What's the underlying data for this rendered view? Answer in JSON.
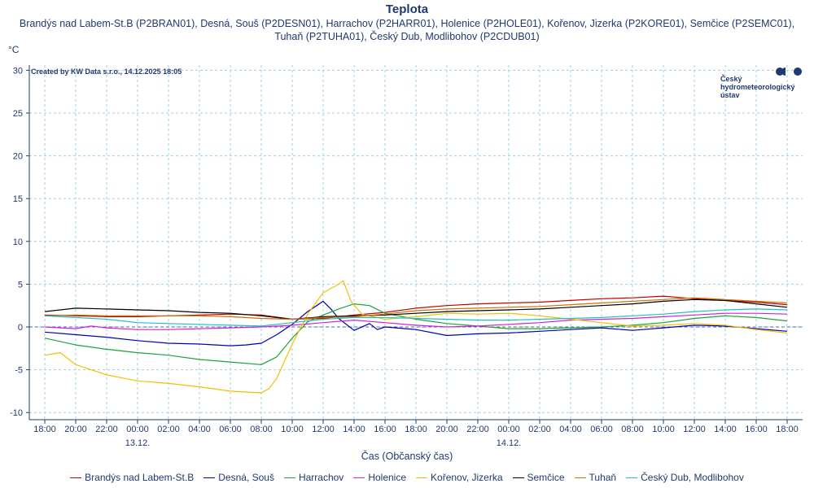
{
  "title": "Teplota",
  "subtitle": "Brandýs nad Labem-St.B (P2BRAN01), Desná, Souš (P2DESN01), Harrachov (P2HARR01), Holenice (P2HOLE01), Kořenov, Jizerka (P2KORE01), Semčice (P2SEMC01), Tuhaň (P2TUHA01), Český Dub, Modlibohov (P2CDUB01)",
  "credit": "Created by KW Data s.r.o., 14.12.2025 18:05",
  "logo": {
    "line1": "Český",
    "line2": "hydrometeorologický",
    "line3": "ústav"
  },
  "chart_data": {
    "type": "line",
    "ylabel": "°C",
    "xlabel": "Čas (Občanský čas)",
    "ylim": [
      -10,
      30
    ],
    "yticks": [
      30,
      25,
      20,
      15,
      10,
      5,
      0,
      -5,
      -10
    ],
    "xlim": [
      0,
      48
    ],
    "x_ticks": [
      {
        "x": 0,
        "label": "18:00"
      },
      {
        "x": 2,
        "label": "20:00"
      },
      {
        "x": 4,
        "label": "22:00"
      },
      {
        "x": 6,
        "label": "00:00",
        "date": "13.12."
      },
      {
        "x": 8,
        "label": "02:00"
      },
      {
        "x": 10,
        "label": "04:00"
      },
      {
        "x": 12,
        "label": "06:00"
      },
      {
        "x": 14,
        "label": "08:00"
      },
      {
        "x": 16,
        "label": "10:00"
      },
      {
        "x": 18,
        "label": "12:00"
      },
      {
        "x": 20,
        "label": "14:00"
      },
      {
        "x": 22,
        "label": "16:00"
      },
      {
        "x": 24,
        "label": "18:00"
      },
      {
        "x": 26,
        "label": "20:00"
      },
      {
        "x": 28,
        "label": "22:00"
      },
      {
        "x": 30,
        "label": "00:00",
        "date": "14.12."
      },
      {
        "x": 32,
        "label": "02:00"
      },
      {
        "x": 34,
        "label": "04:00"
      },
      {
        "x": 36,
        "label": "06:00"
      },
      {
        "x": 38,
        "label": "08:00"
      },
      {
        "x": 40,
        "label": "10:00"
      },
      {
        "x": 42,
        "label": "12:00"
      },
      {
        "x": 44,
        "label": "14:00"
      },
      {
        "x": 46,
        "label": "16:00"
      },
      {
        "x": 48,
        "label": "18:00"
      }
    ],
    "grid": true,
    "legend_position": "bottom",
    "series": [
      {
        "name": "Brandýs nad Labem-St.B",
        "color": "#c00000",
        "points": [
          [
            0,
            1.4
          ],
          [
            2,
            1.3
          ],
          [
            4,
            1.2
          ],
          [
            6,
            1.2
          ],
          [
            8,
            1.3
          ],
          [
            10,
            1.4
          ],
          [
            12,
            1.5
          ],
          [
            14,
            1.4
          ],
          [
            16,
            0.9
          ],
          [
            18,
            1.0
          ],
          [
            20,
            1.4
          ],
          [
            22,
            1.7
          ],
          [
            24,
            2.2
          ],
          [
            26,
            2.5
          ],
          [
            28,
            2.7
          ],
          [
            30,
            2.8
          ],
          [
            32,
            2.9
          ],
          [
            34,
            3.1
          ],
          [
            36,
            3.3
          ],
          [
            38,
            3.4
          ],
          [
            40,
            3.6
          ],
          [
            42,
            3.3
          ],
          [
            44,
            3.1
          ],
          [
            46,
            2.9
          ],
          [
            48,
            2.6
          ]
        ]
      },
      {
        "name": "Desná, Souš",
        "color": "#0000b0",
        "points": [
          [
            0,
            -0.6
          ],
          [
            2,
            -0.9
          ],
          [
            4,
            -1.2
          ],
          [
            6,
            -1.6
          ],
          [
            8,
            -1.9
          ],
          [
            10,
            -2.0
          ],
          [
            12,
            -2.2
          ],
          [
            13,
            -2.1
          ],
          [
            14,
            -1.9
          ],
          [
            15,
            -0.9
          ],
          [
            16,
            0.3
          ],
          [
            17,
            1.8
          ],
          [
            18,
            3.0
          ],
          [
            18.5,
            2.1
          ],
          [
            19,
            1.0
          ],
          [
            20,
            -0.4
          ],
          [
            21,
            0.4
          ],
          [
            21.5,
            -0.3
          ],
          [
            22,
            0.0
          ],
          [
            24,
            -0.3
          ],
          [
            26,
            -1.0
          ],
          [
            28,
            -0.8
          ],
          [
            30,
            -0.7
          ],
          [
            32,
            -0.5
          ],
          [
            34,
            -0.3
          ],
          [
            36,
            -0.1
          ],
          [
            38,
            -0.4
          ],
          [
            40,
            -0.1
          ],
          [
            42,
            0.2
          ],
          [
            44,
            0.1
          ],
          [
            46,
            -0.2
          ],
          [
            48,
            -0.5
          ]
        ]
      },
      {
        "name": "Harrachov",
        "color": "#1aa33a",
        "points": [
          [
            0,
            -1.3
          ],
          [
            2,
            -2.1
          ],
          [
            4,
            -2.6
          ],
          [
            6,
            -3.0
          ],
          [
            8,
            -3.3
          ],
          [
            10,
            -3.8
          ],
          [
            12,
            -4.1
          ],
          [
            14,
            -4.4
          ],
          [
            15,
            -3.5
          ],
          [
            16,
            -1.3
          ],
          [
            17,
            0.6
          ],
          [
            18,
            1.4
          ],
          [
            19,
            2.1
          ],
          [
            20,
            2.7
          ],
          [
            21,
            2.5
          ],
          [
            22,
            1.6
          ],
          [
            24,
            0.9
          ],
          [
            26,
            0.4
          ],
          [
            28,
            0.1
          ],
          [
            30,
            -0.2
          ],
          [
            32,
            -0.2
          ],
          [
            34,
            -0.1
          ],
          [
            36,
            0.0
          ],
          [
            38,
            0.2
          ],
          [
            40,
            0.5
          ],
          [
            42,
            1.0
          ],
          [
            44,
            1.3
          ],
          [
            46,
            1.1
          ],
          [
            48,
            0.7
          ]
        ]
      },
      {
        "name": "Holenice",
        "color": "#d61fd6",
        "points": [
          [
            0,
            0.0
          ],
          [
            2,
            -0.2
          ],
          [
            3,
            0.1
          ],
          [
            4,
            -0.1
          ],
          [
            6,
            -0.3
          ],
          [
            8,
            -0.3
          ],
          [
            10,
            -0.2
          ],
          [
            12,
            -0.1
          ],
          [
            14,
            0.0
          ],
          [
            16,
            0.2
          ],
          [
            18,
            0.5
          ],
          [
            20,
            0.8
          ],
          [
            22,
            0.5
          ],
          [
            24,
            0.2
          ],
          [
            26,
            0.0
          ],
          [
            28,
            0.1
          ],
          [
            30,
            0.3
          ],
          [
            32,
            0.5
          ],
          [
            34,
            0.8
          ],
          [
            36,
            0.9
          ],
          [
            38,
            1.0
          ],
          [
            40,
            1.2
          ],
          [
            42,
            1.4
          ],
          [
            44,
            1.6
          ],
          [
            46,
            1.6
          ],
          [
            48,
            1.5
          ]
        ]
      },
      {
        "name": "Kořenov, Jizerka",
        "color": "#f0c000",
        "points": [
          [
            0,
            -3.3
          ],
          [
            1,
            -3.0
          ],
          [
            2,
            -4.4
          ],
          [
            4,
            -5.6
          ],
          [
            6,
            -6.3
          ],
          [
            8,
            -6.6
          ],
          [
            10,
            -7.0
          ],
          [
            12,
            -7.5
          ],
          [
            13,
            -7.6
          ],
          [
            14,
            -7.7
          ],
          [
            14.5,
            -7.2
          ],
          [
            15,
            -6.0
          ],
          [
            16,
            -2.0
          ],
          [
            17,
            1.5
          ],
          [
            18,
            4.0
          ],
          [
            19,
            5.0
          ],
          [
            19.3,
            5.4
          ],
          [
            19.8,
            3.0
          ],
          [
            20.5,
            1.5
          ],
          [
            22,
            0.9
          ],
          [
            24,
            1.2
          ],
          [
            26,
            1.6
          ],
          [
            28,
            1.5
          ],
          [
            30,
            1.6
          ],
          [
            32,
            1.3
          ],
          [
            34,
            0.9
          ],
          [
            36,
            0.5
          ],
          [
            38,
            0.1
          ],
          [
            40,
            0.2
          ],
          [
            42,
            0.4
          ],
          [
            44,
            0.2
          ],
          [
            46,
            -0.3
          ],
          [
            48,
            -0.7
          ]
        ]
      },
      {
        "name": "Semčice",
        "color": "#000000",
        "points": [
          [
            0,
            1.8
          ],
          [
            2,
            2.2
          ],
          [
            4,
            2.1
          ],
          [
            6,
            2.0
          ],
          [
            8,
            1.9
          ],
          [
            10,
            1.7
          ],
          [
            12,
            1.6
          ],
          [
            14,
            1.3
          ],
          [
            16,
            0.9
          ],
          [
            18,
            1.2
          ],
          [
            20,
            1.3
          ],
          [
            22,
            1.4
          ],
          [
            24,
            1.6
          ],
          [
            26,
            1.8
          ],
          [
            28,
            1.9
          ],
          [
            30,
            2.0
          ],
          [
            32,
            2.1
          ],
          [
            34,
            2.3
          ],
          [
            36,
            2.5
          ],
          [
            38,
            2.7
          ],
          [
            40,
            3.0
          ],
          [
            42,
            3.2
          ],
          [
            44,
            3.1
          ],
          [
            46,
            2.7
          ],
          [
            48,
            2.3
          ]
        ]
      },
      {
        "name": "Tuhaň",
        "color": "#d07000",
        "points": [
          [
            0,
            1.3
          ],
          [
            2,
            1.4
          ],
          [
            4,
            1.3
          ],
          [
            6,
            1.3
          ],
          [
            8,
            1.3
          ],
          [
            10,
            1.3
          ],
          [
            12,
            1.2
          ],
          [
            14,
            1.0
          ],
          [
            16,
            0.9
          ],
          [
            18,
            1.1
          ],
          [
            20,
            1.2
          ],
          [
            22,
            1.5
          ],
          [
            24,
            1.9
          ],
          [
            26,
            2.1
          ],
          [
            28,
            2.2
          ],
          [
            30,
            2.3
          ],
          [
            32,
            2.4
          ],
          [
            34,
            2.6
          ],
          [
            36,
            2.8
          ],
          [
            38,
            3.0
          ],
          [
            40,
            3.2
          ],
          [
            42,
            3.4
          ],
          [
            44,
            3.2
          ],
          [
            46,
            3.0
          ],
          [
            48,
            2.8
          ]
        ]
      },
      {
        "name": "Český Dub, Modlibohov",
        "color": "#20c0c0",
        "points": [
          [
            0,
            1.3
          ],
          [
            2,
            1.1
          ],
          [
            4,
            0.9
          ],
          [
            6,
            0.5
          ],
          [
            8,
            0.4
          ],
          [
            10,
            0.3
          ],
          [
            12,
            0.2
          ],
          [
            14,
            0.1
          ],
          [
            16,
            0.5
          ],
          [
            18,
            0.9
          ],
          [
            20,
            1.1
          ],
          [
            22,
            1.1
          ],
          [
            24,
            1.0
          ],
          [
            26,
            0.9
          ],
          [
            28,
            0.8
          ],
          [
            30,
            0.8
          ],
          [
            32,
            0.9
          ],
          [
            34,
            1.0
          ],
          [
            36,
            1.1
          ],
          [
            38,
            1.3
          ],
          [
            40,
            1.5
          ],
          [
            42,
            1.8
          ],
          [
            44,
            2.0
          ],
          [
            46,
            2.1
          ],
          [
            48,
            2.0
          ]
        ]
      }
    ]
  }
}
